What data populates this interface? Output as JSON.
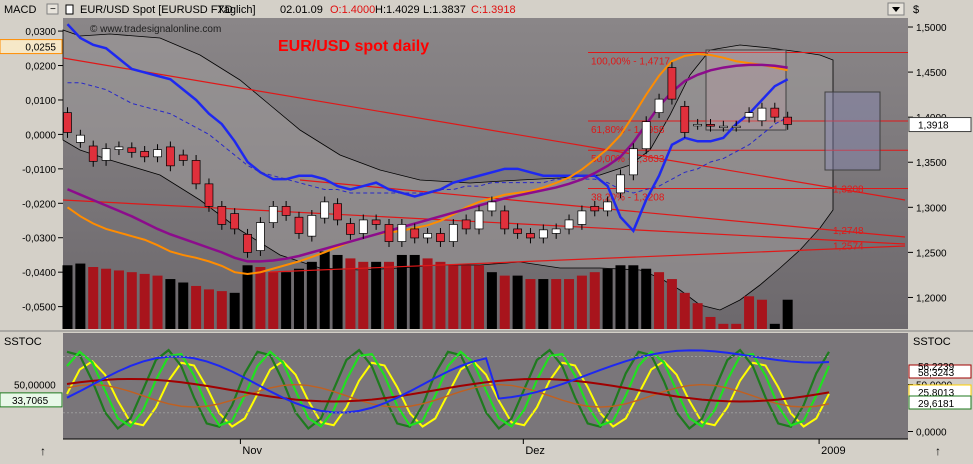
{
  "window": {
    "indicator_label": "MACD",
    "title_symbol": "EUR/USD Spot [EURUSD FXD",
    "title_period": "Täglich]",
    "title_date": "02.01.09",
    "open_label": "O:1.4000",
    "high_label": "H:1.4029",
    "low_label": "L:1.3837",
    "close_label": "C:1.3918",
    "watermark": "© www.tradesignalonline.com",
    "main_title": "EUR/USD spot daily",
    "price_axis_header": "$",
    "lower_indicator_left": "SSTOC",
    "lower_indicator_right": "SSTOC",
    "corner_btn_label": "",
    "arrow_up_glyph": "↑"
  },
  "colors": {
    "background": "#7c787c",
    "axis_panel": "#d4d0c8",
    "bull_candle": "#ffffff",
    "bear_candle": "#e0303c",
    "hist_pos": "#000000",
    "hist_neg": "#a8141c",
    "bollinger_fill": "#a09c9c",
    "macd_line": "#1e28f0",
    "signal_line": "#2828c8",
    "ema_orange": "#ff8c00",
    "ema_purple": "#8c0c8c",
    "fib_line": "#e01818",
    "title_red": "#ff0000"
  },
  "chart_data": [
    {
      "type": "line",
      "panel": "price",
      "title": "EUR/USD spot daily",
      "ylim": [
        1.165,
        1.51
      ],
      "y_ticks": [
        "1,5000",
        "1,4500",
        "1,4000",
        "1,3500",
        "1,3000",
        "1,2500",
        "1,2000"
      ],
      "y_tick_values": [
        1.5,
        1.45,
        1.4,
        1.35,
        1.3,
        1.25,
        1.2
      ],
      "last_price_badge": "1,3918",
      "x_labels": [
        "Nov",
        "Dez",
        "2009"
      ],
      "x_label_index": [
        15,
        37,
        60
      ],
      "candles": [
        {
          "o": 1.405,
          "c": 1.383
        },
        {
          "o": 1.372,
          "c": 1.38
        },
        {
          "o": 1.368,
          "c": 1.351
        },
        {
          "o": 1.352,
          "c": 1.365
        },
        {
          "o": 1.364,
          "c": 1.367
        },
        {
          "o": 1.366,
          "c": 1.361
        },
        {
          "o": 1.362,
          "c": 1.356
        },
        {
          "o": 1.356,
          "c": 1.364
        },
        {
          "o": 1.367,
          "c": 1.346
        },
        {
          "o": 1.358,
          "c": 1.352
        },
        {
          "o": 1.352,
          "c": 1.326
        },
        {
          "o": 1.326,
          "c": 1.301
        },
        {
          "o": 1.301,
          "c": 1.281
        },
        {
          "o": 1.293,
          "c": 1.276
        },
        {
          "o": 1.27,
          "c": 1.25
        },
        {
          "o": 1.252,
          "c": 1.283
        },
        {
          "o": 1.283,
          "c": 1.301
        },
        {
          "o": 1.301,
          "c": 1.291
        },
        {
          "o": 1.289,
          "c": 1.271
        },
        {
          "o": 1.268,
          "c": 1.291
        },
        {
          "o": 1.288,
          "c": 1.306
        },
        {
          "o": 1.304,
          "c": 1.286
        },
        {
          "o": 1.282,
          "c": 1.27
        },
        {
          "o": 1.271,
          "c": 1.286
        },
        {
          "o": 1.286,
          "c": 1.281
        },
        {
          "o": 1.281,
          "c": 1.262
        },
        {
          "o": 1.262,
          "c": 1.281
        },
        {
          "o": 1.276,
          "c": 1.266
        },
        {
          "o": 1.266,
          "c": 1.271
        },
        {
          "o": 1.271,
          "c": 1.262
        },
        {
          "o": 1.262,
          "c": 1.281
        },
        {
          "o": 1.286,
          "c": 1.276
        },
        {
          "o": 1.276,
          "c": 1.296
        },
        {
          "o": 1.296,
          "c": 1.306
        },
        {
          "o": 1.296,
          "c": 1.276
        },
        {
          "o": 1.276,
          "c": 1.271
        },
        {
          "o": 1.271,
          "c": 1.266
        },
        {
          "o": 1.266,
          "c": 1.275
        },
        {
          "o": 1.271,
          "c": 1.276
        },
        {
          "o": 1.276,
          "c": 1.286
        },
        {
          "o": 1.281,
          "c": 1.296
        },
        {
          "o": 1.301,
          "c": 1.296
        },
        {
          "o": 1.296,
          "c": 1.306
        },
        {
          "o": 1.316,
          "c": 1.336
        },
        {
          "o": 1.336,
          "c": 1.365
        },
        {
          "o": 1.365,
          "c": 1.395
        },
        {
          "o": 1.405,
          "c": 1.42
        },
        {
          "o": 1.455,
          "c": 1.42
        },
        {
          "o": 1.412,
          "c": 1.383
        },
        {
          "o": 1.392,
          "c": 1.392
        },
        {
          "o": 1.392,
          "c": 1.39
        },
        {
          "o": 1.39,
          "c": 1.39
        },
        {
          "o": 1.39,
          "c": 1.39
        },
        {
          "o": 1.4,
          "c": 1.405
        },
        {
          "o": 1.396,
          "c": 1.41
        },
        {
          "o": 1.41,
          "c": 1.4
        },
        {
          "o": 1.4,
          "c": 1.392
        }
      ],
      "candle_start_index": 0,
      "histogram": [
        0.0185,
        0.019,
        0.018,
        0.0175,
        0.017,
        0.0165,
        0.016,
        0.0155,
        0.0145,
        0.0135,
        0.0125,
        0.0115,
        0.011,
        0.0105,
        0.0185,
        0.018,
        0.0165,
        0.0165,
        0.0175,
        0.0195,
        0.0225,
        0.0215,
        0.0205,
        0.0195,
        0.0195,
        0.0195,
        0.0215,
        0.0215,
        0.0205,
        0.0195,
        0.0185,
        0.0185,
        0.0185,
        0.0165,
        0.0155,
        0.0155,
        0.0145,
        0.0145,
        0.0145,
        0.0145,
        0.0155,
        0.0165,
        0.0175,
        0.0185,
        0.0185,
        0.0175,
        0.0165,
        0.0145,
        0.0105,
        0.0075,
        0.0035,
        0.0015,
        0.0015,
        0.0095,
        0.0085,
        0.0015,
        0.0085
      ],
      "histogram_neg": [
        false,
        false,
        true,
        true,
        true,
        true,
        true,
        true,
        false,
        false,
        true,
        true,
        true,
        false,
        false,
        true,
        true,
        false,
        false,
        false,
        false,
        false,
        true,
        true,
        false,
        true,
        false,
        false,
        true,
        true,
        true,
        true,
        true,
        false,
        true,
        false,
        true,
        false,
        true,
        true,
        true,
        true,
        false,
        false,
        false,
        false,
        true,
        true,
        true,
        true,
        true,
        true,
        true,
        true,
        true,
        false,
        false
      ],
      "fib_levels": [
        {
          "label": "100,00% - 1,4717",
          "value": 1.4717
        },
        {
          "label": "61,80% - 1,3958",
          "value": 1.3958
        },
        {
          "label": "50,00% - 1,3633",
          "value": 1.3633
        },
        {
          "label": "38,20% - 1,3208",
          "value": 1.3208
        },
        {
          "label": "1,3208",
          "value": 1.3208
        },
        {
          "label": "1,2748",
          "value": 1.2748
        },
        {
          "label": "1,2574",
          "value": 1.2574
        }
      ]
    },
    {
      "type": "line",
      "panel": "macd",
      "ylim": [
        -0.0565,
        0.0338
      ],
      "y_ticks": [
        "0,0300",
        "0,0200",
        "0,0100",
        "0,0000",
        "-0,0100",
        "-0,0200",
        "-0,0300",
        "-0,0400",
        "-0,0500"
      ],
      "y_tick_values": [
        0.03,
        0.02,
        0.01,
        0.0,
        -0.01,
        -0.02,
        -0.03,
        -0.04,
        -0.05
      ],
      "last_value_badge": "0,0255",
      "series": [
        {
          "values": [
            0.032,
            0.028,
            0.026,
            0.025,
            0.022,
            0.019,
            0.018,
            0.017,
            0.016,
            0.013,
            0.01,
            0.006,
            0.003,
            -0.002,
            -0.008,
            -0.011,
            -0.013,
            -0.013,
            -0.012,
            -0.012,
            -0.013,
            -0.015,
            -0.016,
            -0.015,
            -0.014,
            -0.016,
            -0.017,
            -0.018,
            -0.017,
            -0.016,
            -0.014,
            -0.013,
            -0.012,
            -0.011,
            -0.01,
            -0.01,
            -0.011,
            -0.012,
            -0.012,
            -0.012,
            -0.012,
            -0.012,
            -0.015,
            -0.024,
            -0.028,
            -0.019,
            -0.012,
            -0.003,
            -0.001,
            -0.002,
            -0.002,
            -0.001,
            0.003,
            0.006,
            0.01,
            0.014,
            0.016
          ]
        },
        {
          "values": [
            0.015,
            0.015,
            0.014,
            0.013,
            0.011,
            0.009,
            0.008,
            0.007,
            0.006,
            0.004,
            0.002,
            0.0,
            -0.003,
            -0.006,
            -0.009,
            -0.011,
            -0.012,
            -0.013,
            -0.014,
            -0.015,
            -0.016,
            -0.016,
            -0.017,
            -0.017,
            -0.017,
            -0.017,
            -0.017,
            -0.017,
            -0.017,
            -0.016,
            -0.016,
            -0.015,
            -0.015,
            -0.014,
            -0.014,
            -0.014,
            -0.014,
            -0.014,
            -0.013,
            -0.013,
            -0.013,
            -0.013,
            -0.014,
            -0.016,
            -0.017,
            -0.016,
            -0.015,
            -0.013,
            -0.011,
            -0.01,
            -0.008,
            -0.007,
            -0.005,
            -0.003,
            0.0,
            0.003,
            0.005
          ]
        }
      ]
    },
    {
      "type": "line",
      "panel": "sstoc",
      "ylim": [
        -8,
        105
      ],
      "y_ticks_right": [
        "50,0000",
        "0,0000"
      ],
      "y_tick_values_right": [
        50,
        0
      ],
      "y_ticks_left": [
        "50,00000"
      ],
      "y_tick_values_left": [
        50
      ],
      "left_badge": "33,7065",
      "right_badges": [
        {
          "label": "58,3243",
          "value": 58.3243
        },
        {
          "label": "25,8013",
          "value": 25.8013
        },
        {
          "label": "29,6181",
          "value": 29.6181
        }
      ],
      "right_badges_hidden": [
        "56,2239"
      ]
    }
  ]
}
